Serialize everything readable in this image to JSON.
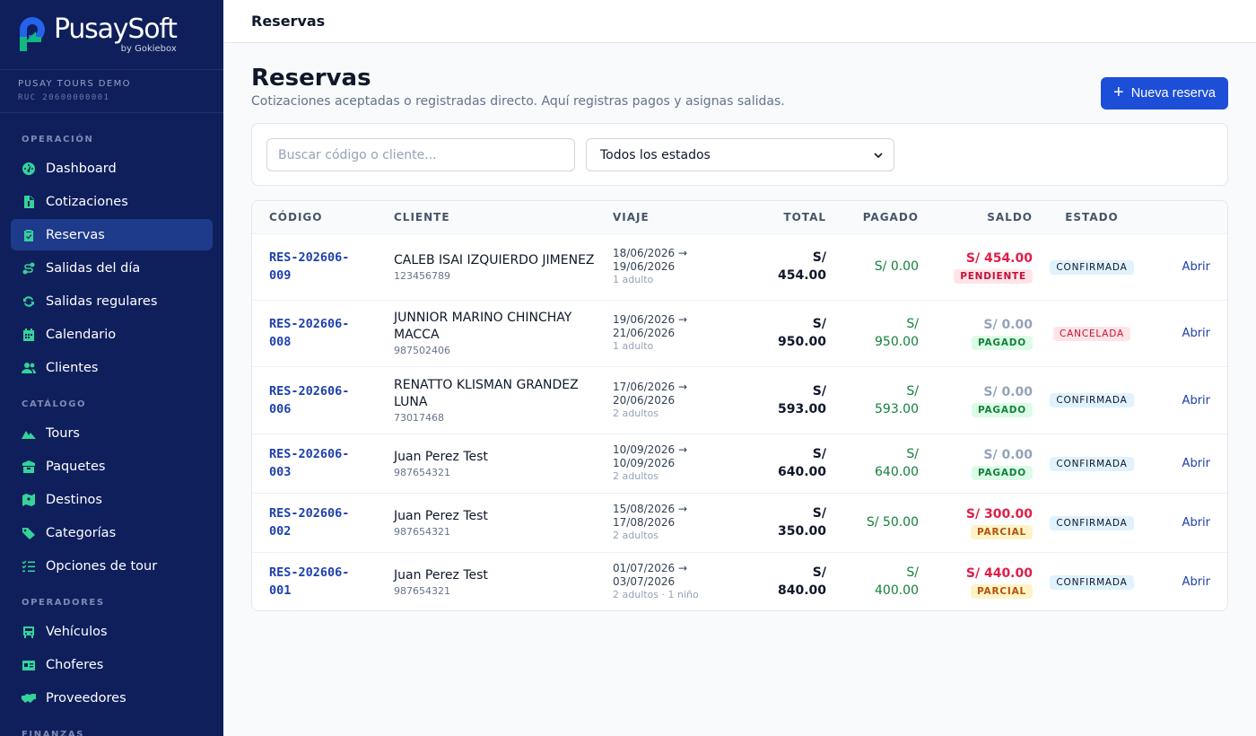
{
  "brand": {
    "name": "PusaySoft",
    "sub": "by Gokiebox"
  },
  "tenant": {
    "name": "PUSAY TOURS DEMO",
    "ruc": "RUC 20600000001"
  },
  "sidebar": {
    "sections": [
      {
        "label": "OPERACIÓN",
        "items": [
          {
            "label": "Dashboard",
            "icon": "dashboard-icon"
          },
          {
            "label": "Cotizaciones",
            "icon": "file-invoice-icon"
          },
          {
            "label": "Reservas",
            "icon": "clipboard-check-icon",
            "active": true
          },
          {
            "label": "Salidas del día",
            "icon": "route-icon"
          },
          {
            "label": "Salidas regulares",
            "icon": "refresh-icon"
          },
          {
            "label": "Calendario",
            "icon": "calendar-icon"
          },
          {
            "label": "Clientes",
            "icon": "users-icon"
          }
        ]
      },
      {
        "label": "CATÁLOGO",
        "items": [
          {
            "label": "Tours",
            "icon": "mountain-icon"
          },
          {
            "label": "Paquetes",
            "icon": "box-icon"
          },
          {
            "label": "Destinos",
            "icon": "map-icon"
          },
          {
            "label": "Categorías",
            "icon": "tags-icon"
          },
          {
            "label": "Opciones de tour",
            "icon": "list-check-icon"
          }
        ]
      },
      {
        "label": "OPERADORES",
        "items": [
          {
            "label": "Vehículos",
            "icon": "bus-icon"
          },
          {
            "label": "Choferes",
            "icon": "id-card-icon"
          },
          {
            "label": "Proveedores",
            "icon": "handshake-icon"
          }
        ]
      },
      {
        "label": "FINANZAS",
        "items": []
      }
    ]
  },
  "topbar": {
    "title": "Reservas"
  },
  "page": {
    "title": "Reservas",
    "subtitle": "Cotizaciones aceptadas o registradas directo. Aquí registras pagos y asignas salidas.",
    "new_button": "Nueva reserva"
  },
  "filters": {
    "search_placeholder": "Buscar código o cliente...",
    "search_value": "",
    "status_selected": "Todos los estados"
  },
  "table": {
    "headers": {
      "code": "CÓDIGO",
      "client": "CLIENTE",
      "trip": "VIAJE",
      "total": "TOTAL",
      "paid": "PAGADO",
      "balance": "SALDO",
      "state": "ESTADO"
    },
    "open_label": "Abrir",
    "rows": [
      {
        "code": "RES-202606-009",
        "client": "CALEB ISAI IZQUIERDO JIMENEZ",
        "doc": "123456789",
        "start": "18/06/2026 →",
        "end": "19/06/2026",
        "pax": "1 adulto",
        "total": "S/ 454.00",
        "paid": "S/ 0.00",
        "balance": "S/ 454.00",
        "balance_style": "red",
        "payment": "PENDIENTE",
        "payment_style": "pend",
        "state": "CONFIRMADA",
        "state_style": "conf"
      },
      {
        "code": "RES-202606-008",
        "client": "JUNNIOR MARINO CHINCHAY MACCA",
        "doc": "987502406",
        "start": "19/06/2026 →",
        "end": "21/06/2026",
        "pax": "1 adulto",
        "total": "S/ 950.00",
        "paid": "S/ 950.00",
        "balance": "S/ 0.00",
        "balance_style": "gray",
        "payment": "PAGADO",
        "payment_style": "paid",
        "state": "CANCELADA",
        "state_style": "canc"
      },
      {
        "code": "RES-202606-006",
        "client": "RENATTO KLISMAN GRANDEZ LUNA",
        "doc": "73017468",
        "start": "17/06/2026 →",
        "end": "20/06/2026",
        "pax": "2 adultos",
        "total": "S/ 593.00",
        "paid": "S/ 593.00",
        "balance": "S/ 0.00",
        "balance_style": "gray",
        "payment": "PAGADO",
        "payment_style": "paid",
        "state": "CONFIRMADA",
        "state_style": "conf"
      },
      {
        "code": "RES-202606-003",
        "client": "Juan Perez Test",
        "doc": "987654321",
        "start": "10/09/2026 →",
        "end": "10/09/2026",
        "pax": "2 adultos",
        "total": "S/ 640.00",
        "paid": "S/ 640.00",
        "balance": "S/ 0.00",
        "balance_style": "gray",
        "payment": "PAGADO",
        "payment_style": "paid",
        "state": "CONFIRMADA",
        "state_style": "conf"
      },
      {
        "code": "RES-202606-002",
        "client": "Juan Perez Test",
        "doc": "987654321",
        "start": "15/08/2026 →",
        "end": "17/08/2026",
        "pax": "2 adultos",
        "total": "S/ 350.00",
        "paid": "S/ 50.00",
        "balance": "S/ 300.00",
        "balance_style": "red",
        "payment": "PARCIAL",
        "payment_style": "partial",
        "state": "CONFIRMADA",
        "state_style": "conf"
      },
      {
        "code": "RES-202606-001",
        "client": "Juan Perez Test",
        "doc": "987654321",
        "start": "01/07/2026 →",
        "end": "03/07/2026",
        "pax": "2 adultos · 1 niño",
        "total": "S/ 840.00",
        "paid": "S/ 400.00",
        "balance": "S/ 440.00",
        "balance_style": "red",
        "payment": "PARCIAL",
        "payment_style": "partial",
        "state": "CONFIRMADA",
        "state_style": "conf"
      }
    ]
  },
  "colors": {
    "sidebar_bg": "#0f1f5c",
    "accent": "#1d4ed8",
    "icon_green": "#34d399"
  }
}
